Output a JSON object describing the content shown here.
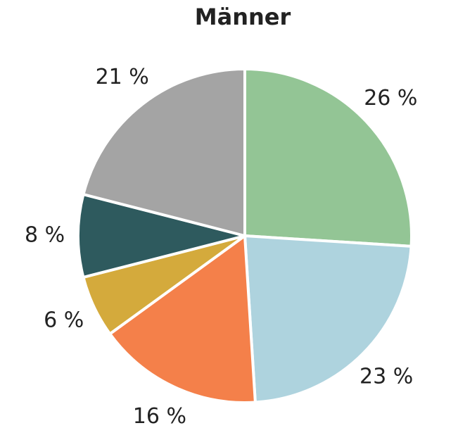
{
  "chart_data": {
    "type": "pie",
    "title": "Männer",
    "categories": [
      null,
      null,
      null,
      null,
      null,
      null
    ],
    "values": [
      26,
      23,
      16,
      6,
      8,
      21
    ],
    "value_labels": [
      "26 %",
      "23 %",
      "16 %",
      "6 %",
      "8 %",
      "21 %"
    ],
    "colors": [
      "#93c595",
      "#aed3de",
      "#f4804a",
      "#d4aa3c",
      "#2e5a5e",
      "#a4a4a4"
    ]
  }
}
